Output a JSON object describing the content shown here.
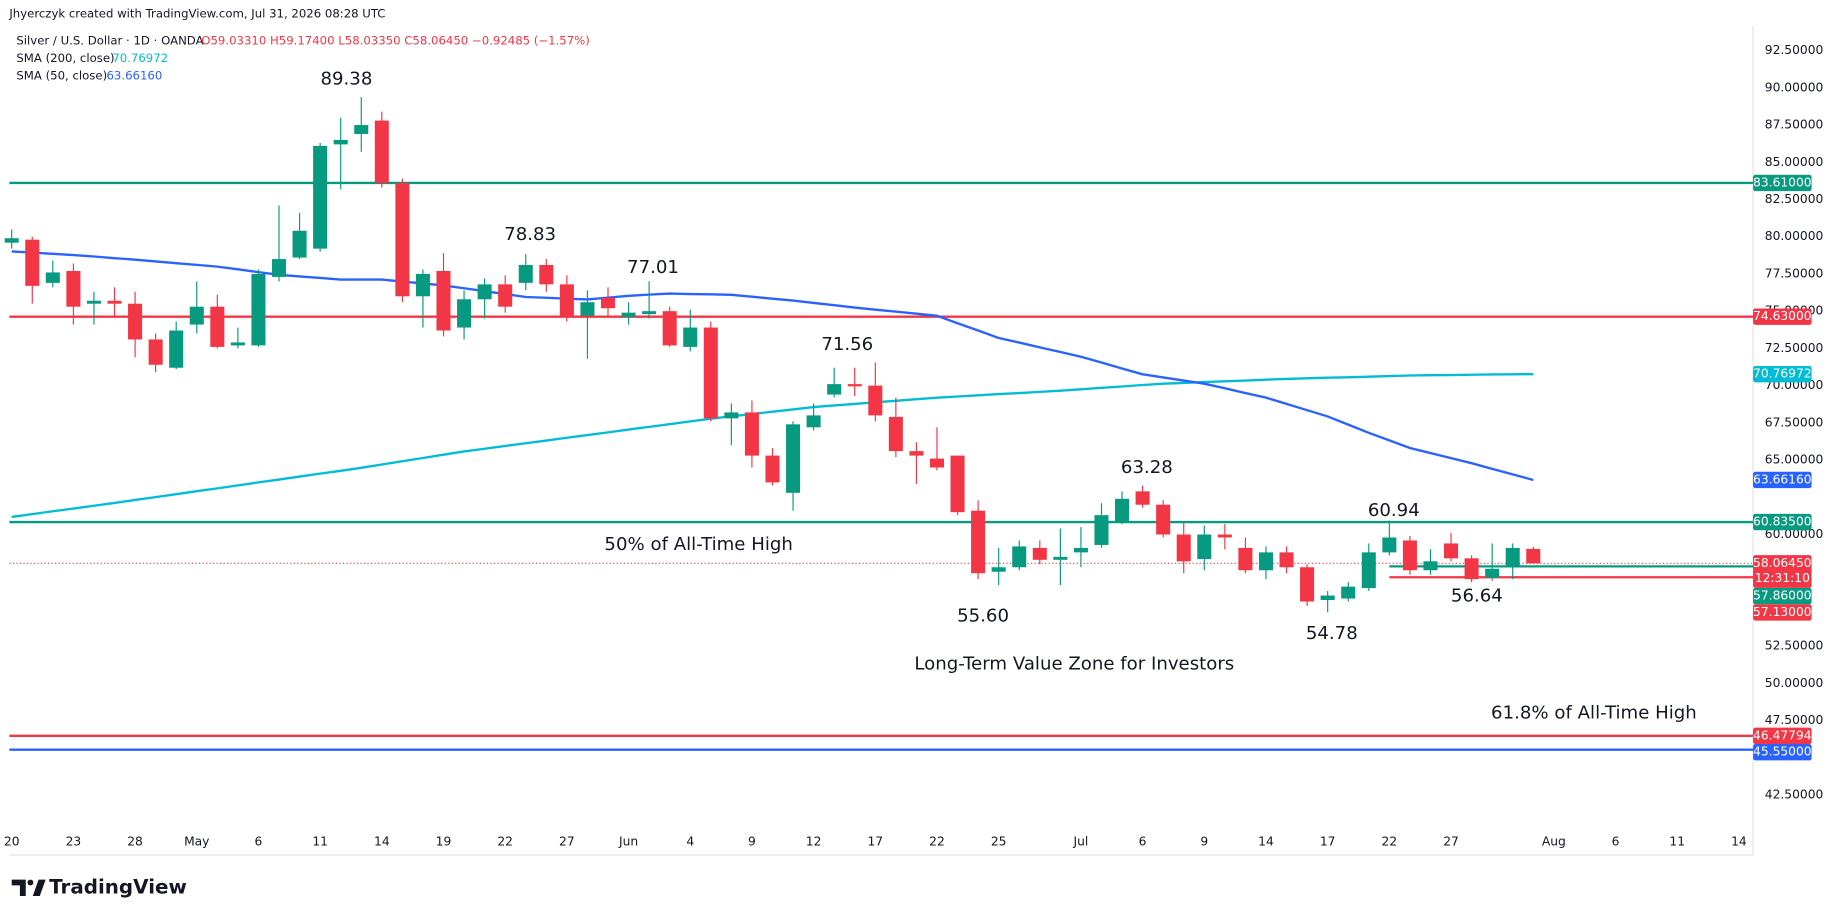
{
  "header": {
    "credit": "Jhyerczyk created with TradingView.com, Jul 31, 2026 08:28 UTC",
    "symbol": "Silver / U.S. Dollar · 1D · OANDA",
    "ohlc": "O59.03310 H59.17400 L58.03350 C58.06450 −0.92485 (−1.57%)"
  },
  "footer": {
    "brand": "TradingView"
  },
  "chart_data": {
    "type": "candlestick",
    "categories": [
      "20",
      null,
      null,
      "23",
      null,
      null,
      "28",
      null,
      null,
      "May",
      null,
      null,
      "6",
      null,
      null,
      "11",
      null,
      null,
      "14",
      null,
      null,
      "19",
      null,
      null,
      "22",
      null,
      null,
      "27",
      null,
      null,
      "Jun",
      null,
      null,
      "4",
      null,
      null,
      "9",
      null,
      null,
      "12",
      null,
      null,
      "17",
      null,
      null,
      "22",
      null,
      null,
      "25",
      null,
      null,
      null,
      "Jul",
      null,
      null,
      "6",
      null,
      null,
      "9",
      null,
      null,
      "14",
      null,
      null,
      "17",
      null,
      null,
      "22",
      null,
      null,
      "27",
      null,
      null,
      null,
      null,
      "Aug",
      null,
      null,
      "6",
      null,
      null,
      "11",
      null,
      null,
      "14"
    ],
    "open": [
      79.6,
      79.8,
      76.9,
      77.7,
      75.5,
      75.7,
      75.5,
      73.1,
      71.2,
      74.1,
      75.3,
      72.7,
      72.7,
      77.3,
      78.6,
      79.2,
      86.2,
      86.9,
      87.8,
      83.6,
      76.0,
      77.7,
      73.9,
      75.8,
      76.8,
      76.9,
      78.1,
      76.8,
      74.7,
      75.9,
      74.6,
      74.8,
      75.0,
      72.6,
      73.9,
      67.8,
      68.2,
      65.3,
      62.8,
      67.2,
      69.4,
      70.1,
      70.0,
      67.9,
      65.6,
      65.1,
      65.3,
      61.6,
      57.5,
      57.8,
      59.1,
      58.3,
      58.8,
      59.3,
      60.9,
      62.9,
      62.0,
      60.0,
      58.35,
      60.0,
      59.1,
      57.6,
      58.8,
      57.8,
      55.6,
      55.7,
      56.4,
      58.8,
      59.6,
      57.6,
      59.4,
      58.4,
      57.1,
      57.9,
      59.0331,
      null,
      null,
      null,
      null,
      null,
      null,
      null,
      null,
      null,
      null
    ],
    "high": [
      80.5,
      80.0,
      78.4,
      78.2,
      76.3,
      76.6,
      76.3,
      73.5,
      74.3,
      77.0,
      76.1,
      73.9,
      77.8,
      82.1,
      81.6,
      86.3,
      88.0,
      89.38,
      88.4,
      83.9,
      77.8,
      78.9,
      76.4,
      77.2,
      77.4,
      78.83,
      78.5,
      77.4,
      76.4,
      76.6,
      75.6,
      77.01,
      75.3,
      75.1,
      74.3,
      68.8,
      69.0,
      65.8,
      67.6,
      68.8,
      71.2,
      71.2,
      71.56,
      69.2,
      66.2,
      67.2,
      65.3,
      62.3,
      59.1,
      59.6,
      59.6,
      60.4,
      60.5,
      62.1,
      62.9,
      63.28,
      62.3,
      60.9,
      60.6,
      60.7,
      59.8,
      59.2,
      59.2,
      58.0,
      56.2,
      56.8,
      59.4,
      60.94,
      59.9,
      59.0,
      60.1,
      58.6,
      59.4,
      59.4,
      59.174,
      null,
      null,
      null,
      null,
      null,
      null,
      null,
      null,
      null,
      null
    ],
    "low": [
      79.2,
      75.5,
      76.6,
      74.1,
      74.1,
      74.7,
      71.9,
      70.9,
      71.1,
      73.5,
      72.5,
      72.5,
      72.6,
      77.0,
      78.5,
      79.0,
      83.2,
      85.7,
      83.3,
      75.6,
      73.9,
      73.3,
      73.1,
      74.5,
      74.9,
      76.4,
      76.3,
      74.3,
      71.8,
      74.7,
      74.1,
      74.5,
      72.6,
      72.3,
      67.6,
      66.0,
      64.5,
      63.3,
      61.6,
      67.0,
      69.2,
      69.3,
      67.6,
      65.2,
      63.4,
      64.3,
      61.3,
      57.0,
      56.6,
      57.6,
      58.0,
      56.6,
      57.8,
      59.1,
      60.7,
      61.8,
      59.8,
      57.4,
      57.6,
      59.0,
      57.4,
      57.0,
      57.4,
      55.2,
      54.78,
      55.5,
      56.2,
      58.6,
      57.3,
      57.3,
      58.2,
      56.8,
      56.9,
      57.0,
      58.0335,
      null,
      null,
      null,
      null,
      null,
      null,
      null,
      null,
      null,
      null
    ],
    "close": [
      79.9,
      76.7,
      77.6,
      75.3,
      75.7,
      75.5,
      73.1,
      71.4,
      73.7,
      75.3,
      72.6,
      72.9,
      77.5,
      78.5,
      80.4,
      86.1,
      86.5,
      87.5,
      83.6,
      76.0,
      77.5,
      73.7,
      75.8,
      76.8,
      75.3,
      78.1,
      76.8,
      74.7,
      75.6,
      75.2,
      74.9,
      75.0,
      72.7,
      73.9,
      67.8,
      68.2,
      65.3,
      63.5,
      67.4,
      68.0,
      70.1,
      69.95,
      68.0,
      65.6,
      65.3,
      64.5,
      61.5,
      57.4,
      57.8,
      59.2,
      58.3,
      58.5,
      59.1,
      61.3,
      62.4,
      62.0,
      60.0,
      58.2,
      60.0,
      59.8,
      57.6,
      58.8,
      57.8,
      55.5,
      55.9,
      56.5,
      58.8,
      59.8,
      57.6,
      58.2,
      58.4,
      57.0,
      57.7,
      59.1,
      58.0645,
      null,
      null,
      null,
      null,
      null,
      null,
      null,
      null,
      null,
      null
    ],
    "up_color": "#089981",
    "down_color": "#f23645",
    "series": [
      {
        "name": "SMA (200, close)",
        "color": "#00bcd4",
        "last_label": "70.76972",
        "values": [
          61.18,
          61.37,
          61.56,
          61.74,
          61.93,
          62.12,
          62.32,
          62.51,
          62.71,
          62.91,
          63.1,
          63.3,
          63.5,
          63.69,
          63.89,
          64.09,
          64.28,
          64.48,
          64.7,
          64.92,
          65.14,
          65.36,
          65.58,
          65.76,
          65.95,
          66.13,
          66.31,
          66.5,
          66.68,
          66.86,
          67.05,
          67.23,
          67.41,
          67.6,
          67.78,
          67.94,
          68.09,
          68.25,
          68.4,
          68.56,
          68.67,
          68.77,
          68.88,
          68.98,
          69.09,
          69.19,
          69.27,
          69.35,
          69.43,
          69.5,
          69.58,
          69.66,
          69.75,
          69.85,
          69.94,
          70.04,
          70.13,
          70.18,
          70.24,
          70.29,
          70.34,
          70.4,
          70.45,
          70.49,
          70.53,
          70.56,
          70.6,
          70.64,
          70.68,
          70.7,
          70.71,
          70.73,
          70.75,
          70.76,
          70.76972,
          null,
          null,
          null,
          null,
          null,
          null,
          null,
          null,
          null,
          null
        ]
      },
      {
        "name": "SMA (50, close)",
        "color": "#2962ff",
        "last_label": "63.66160",
        "values": [
          79.01,
          78.93,
          78.85,
          78.77,
          78.67,
          78.56,
          78.46,
          78.34,
          78.22,
          78.11,
          77.99,
          77.81,
          77.62,
          77.44,
          77.33,
          77.23,
          77.12,
          77.12,
          77.12,
          76.99,
          76.86,
          76.73,
          76.54,
          76.34,
          76.15,
          75.95,
          75.9,
          75.84,
          75.79,
          75.91,
          76.03,
          76.11,
          76.18,
          76.15,
          76.13,
          76.1,
          75.97,
          75.84,
          75.71,
          75.55,
          75.4,
          75.24,
          75.1,
          74.97,
          74.83,
          74.69,
          74.19,
          73.7,
          73.2,
          72.89,
          72.57,
          72.26,
          71.94,
          71.55,
          71.15,
          70.76,
          70.55,
          70.34,
          70.13,
          69.82,
          69.5,
          69.19,
          68.77,
          68.35,
          67.93,
          67.38,
          66.83,
          66.32,
          65.81,
          65.47,
          65.13,
          64.79,
          64.41,
          64.04,
          63.6616,
          null,
          null,
          null,
          null,
          null,
          null,
          null,
          null,
          null,
          null
        ]
      }
    ],
    "hlines": [
      {
        "value": 83.61,
        "label": "83.61000",
        "color": "#089981"
      },
      {
        "value": 74.63,
        "label": "74.63000",
        "color": "#f23645"
      },
      {
        "value": 60.835,
        "label": "60.83500",
        "color": "#089981"
      },
      {
        "value": 57.86,
        "label": "57.86000",
        "color": "#089981"
      },
      {
        "value": 57.13,
        "label": "57.13000",
        "color": "#f23645"
      },
      {
        "value": 46.47794,
        "label": "46.47794",
        "color": "#f23645"
      },
      {
        "value": 45.55,
        "label": "45.55000",
        "color": "#2962ff"
      }
    ],
    "close_tag": {
      "value": 58.0645,
      "label": "58.06450",
      "countdown": "12:31:10"
    },
    "annotations": [
      "89.38",
      "78.83",
      "77.01",
      "71.56",
      "63.28",
      "60.94",
      "55.60",
      "54.78",
      "56.64",
      "50% of All-Time High",
      "Long-Term Value Zone for Investors",
      "61.8% of All-Time High"
    ],
    "ylim": [
      40.36,
      94.17
    ],
    "yticks": [
      {
        "value": 42.5,
        "label": "42.50000"
      },
      {
        "value": 47.5,
        "label": "47.50000"
      },
      {
        "value": 50,
        "label": "50.00000"
      },
      {
        "value": 52.5,
        "label": "52.50000"
      },
      {
        "value": 60,
        "label": "60.00000"
      },
      {
        "value": 65,
        "label": "65.00000"
      },
      {
        "value": 67.5,
        "label": "67.50000"
      },
      {
        "value": 70,
        "label": "70.00000"
      },
      {
        "value": 72.5,
        "label": "72.50000"
      },
      {
        "value": 75,
        "label": "75.00000"
      },
      {
        "value": 77.5,
        "label": "77.50000"
      },
      {
        "value": 80,
        "label": "80.00000"
      },
      {
        "value": 82.5,
        "label": "82.50000"
      },
      {
        "value": 85,
        "label": "85.00000"
      },
      {
        "value": 87.5,
        "label": "87.50000"
      },
      {
        "value": 90,
        "label": "90.00000"
      },
      {
        "value": 92.5,
        "label": "92.50000"
      }
    ],
    "grid": false
  }
}
